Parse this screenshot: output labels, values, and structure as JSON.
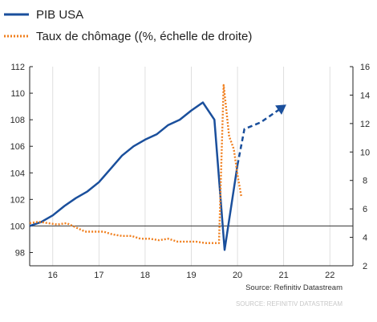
{
  "chart_data": {
    "type": "line",
    "legend": {
      "placement": "top-left",
      "entries": [
        {
          "label": "PIB USA",
          "series": "gdp"
        },
        {
          "label": "Taux de chômage ((%, échelle de droite)",
          "series": "unemployment"
        }
      ]
    },
    "source": "Source: Refinitiv Datastream",
    "faint_footer": "SOURCE: REFINITIV DATASTREAM",
    "colors": {
      "gdp": "#1a4f9c",
      "unemployment": "#f07f1e",
      "axis": "#222222",
      "grid": "#d7d7d7",
      "baseline": "#333333"
    },
    "x_axis": {
      "ticks": [
        "16",
        "17",
        "18",
        "19",
        "20",
        "21",
        "22"
      ],
      "tick_positions": [
        2016,
        2017,
        2018,
        2019,
        2020,
        2021,
        2022
      ],
      "range": [
        2015.5,
        2022.5
      ]
    },
    "y_left": {
      "ticks": [
        "98",
        "100",
        "102",
        "104",
        "106",
        "108",
        "110",
        "112"
      ],
      "range": [
        97,
        112
      ],
      "baseline": 100
    },
    "y_right": {
      "ticks": [
        "2",
        "4",
        "6",
        "8",
        "10",
        "12",
        "14",
        "16"
      ],
      "range": [
        2,
        16
      ]
    },
    "grid": "vertical",
    "series": [
      {
        "key": "gdp",
        "axis": "left",
        "style": "solid",
        "points": [
          [
            2015.5,
            100.0
          ],
          [
            2015.75,
            100.3
          ],
          [
            2016.0,
            100.8
          ],
          [
            2016.25,
            101.5
          ],
          [
            2016.5,
            102.1
          ],
          [
            2016.75,
            102.6
          ],
          [
            2017.0,
            103.3
          ],
          [
            2017.25,
            104.3
          ],
          [
            2017.5,
            105.3
          ],
          [
            2017.75,
            106.0
          ],
          [
            2018.0,
            106.5
          ],
          [
            2018.25,
            106.9
          ],
          [
            2018.5,
            107.6
          ],
          [
            2018.75,
            108.0
          ],
          [
            2019.0,
            108.7
          ],
          [
            2019.25,
            109.3
          ],
          [
            2019.5,
            108.0
          ],
          [
            2019.72,
            98.2
          ],
          [
            2020.0,
            104.6
          ]
        ]
      },
      {
        "key": "gdp_forecast",
        "axis": "left",
        "style": "dashed",
        "points": [
          [
            2020.0,
            104.6
          ],
          [
            2020.15,
            107.3
          ],
          [
            2020.5,
            107.8
          ],
          [
            2021.0,
            109.0
          ]
        ]
      },
      {
        "key": "unemployment",
        "axis": "right",
        "style": "dotted",
        "points": [
          [
            2015.5,
            5.0
          ],
          [
            2015.7,
            5.1
          ],
          [
            2015.9,
            5.0
          ],
          [
            2016.1,
            4.9
          ],
          [
            2016.3,
            5.0
          ],
          [
            2016.5,
            4.7
          ],
          [
            2016.7,
            4.4
          ],
          [
            2016.9,
            4.4
          ],
          [
            2017.1,
            4.4
          ],
          [
            2017.3,
            4.2
          ],
          [
            2017.5,
            4.1
          ],
          [
            2017.7,
            4.1
          ],
          [
            2017.9,
            3.9
          ],
          [
            2018.1,
            3.9
          ],
          [
            2018.3,
            3.8
          ],
          [
            2018.5,
            3.9
          ],
          [
            2018.7,
            3.7
          ],
          [
            2018.9,
            3.7
          ],
          [
            2019.1,
            3.7
          ],
          [
            2019.3,
            3.6
          ],
          [
            2019.5,
            3.6
          ],
          [
            2019.6,
            3.6
          ],
          [
            2019.7,
            14.7
          ],
          [
            2019.82,
            11.1
          ],
          [
            2019.92,
            10.2
          ],
          [
            2020.0,
            8.4
          ],
          [
            2020.08,
            6.9
          ]
        ]
      }
    ]
  }
}
